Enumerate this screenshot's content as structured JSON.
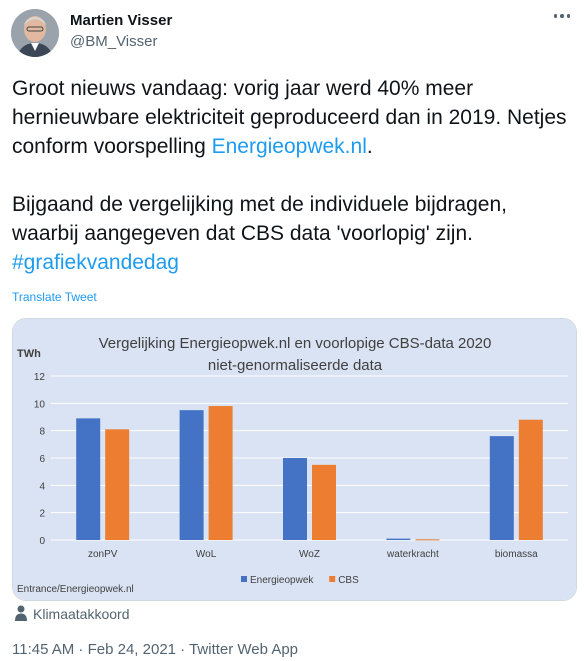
{
  "author": {
    "name": "Martien Visser",
    "handle": "@BM_Visser"
  },
  "tweet": {
    "line1": "Groot nieuws vandaag: vorig jaar werd 40% meer hernieuwbare elektriciteit geproduceerd dan in 2019. Netjes conform voorspelling ",
    "link": "Energieopwek.nl",
    "line1_end": ".",
    "line2": "Bijgaand de vergelijking met de individuele bijdragen, waarbij aangegeven dat CBS data 'voorlopig' zijn.",
    "hashtag": "#grafiekvandedag",
    "translate_label": "Translate Tweet"
  },
  "location": "Klimaatakkoord",
  "meta": {
    "time": "11:45 AM",
    "separator": " · ",
    "date": "Feb 24, 2021",
    "client": "Twitter Web App"
  },
  "chart_data": {
    "type": "bar",
    "title": "Vergelijking Energieopwek.nl en voorlopige CBS-data 2020",
    "subtitle": "niet-genormaliseerde data",
    "ylabel": "TWh",
    "ylim": [
      0,
      12
    ],
    "yticks": [
      0,
      2,
      4,
      6,
      8,
      10,
      12
    ],
    "categories": [
      "zonPV",
      "WoL",
      "WoZ",
      "waterkracht",
      "biomassa"
    ],
    "series": [
      {
        "name": "Energieopwek",
        "color": "#4472c4",
        "values": [
          8.9,
          9.5,
          6.0,
          0.1,
          7.6
        ]
      },
      {
        "name": "CBS",
        "color": "#ed7d31",
        "values": [
          8.1,
          9.8,
          5.5,
          0.05,
          8.8
        ]
      }
    ],
    "source_note": "Entrance/Energieopwek.nl",
    "legend_position": "bottom",
    "grid": true,
    "background": "#dae3f3"
  }
}
